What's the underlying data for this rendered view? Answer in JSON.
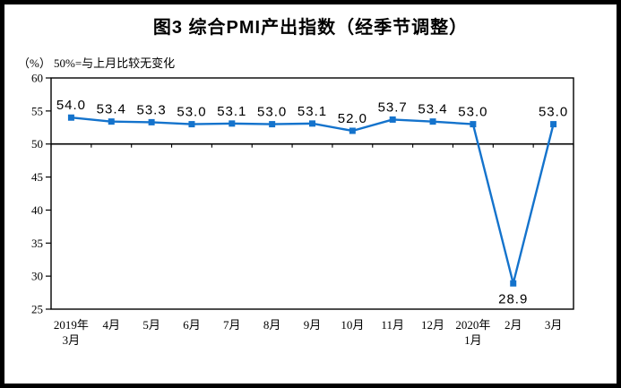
{
  "title": "图3 综合PMI产出指数（经季节调整）",
  "unit_label": "（%）",
  "note": "50%=与上月比较无变化",
  "colors": {
    "line": "#1473CC",
    "axis": "#000000",
    "frame": "#000000"
  },
  "chart_data": {
    "type": "line",
    "title": "图3 综合PMI产出指数（经季节调整）",
    "ylabel": "（%）",
    "annotation": "50%=与上月比较无变化",
    "categories": [
      "2019年\n3月",
      "4月",
      "5月",
      "6月",
      "7月",
      "8月",
      "9月",
      "10月",
      "11月",
      "12月",
      "2020年\n1月",
      "2月",
      "3月"
    ],
    "values": [
      54.0,
      53.4,
      53.3,
      53.0,
      53.1,
      53.0,
      53.1,
      52.0,
      53.7,
      53.4,
      53.0,
      28.9,
      53.0
    ],
    "value_labels": [
      "54.0",
      "53.4",
      "53.3",
      "53.0",
      "53.1",
      "53.0",
      "53.1",
      "52.0",
      "53.7",
      "53.4",
      "53.0",
      "28.9",
      "53.0"
    ],
    "ylim": [
      25,
      60
    ],
    "yticks": [
      25,
      30,
      35,
      40,
      45,
      50,
      55,
      60
    ],
    "reference_line": 50,
    "grid": false,
    "legend_position": "none",
    "marker": "square",
    "line_color": "#1473CC"
  }
}
